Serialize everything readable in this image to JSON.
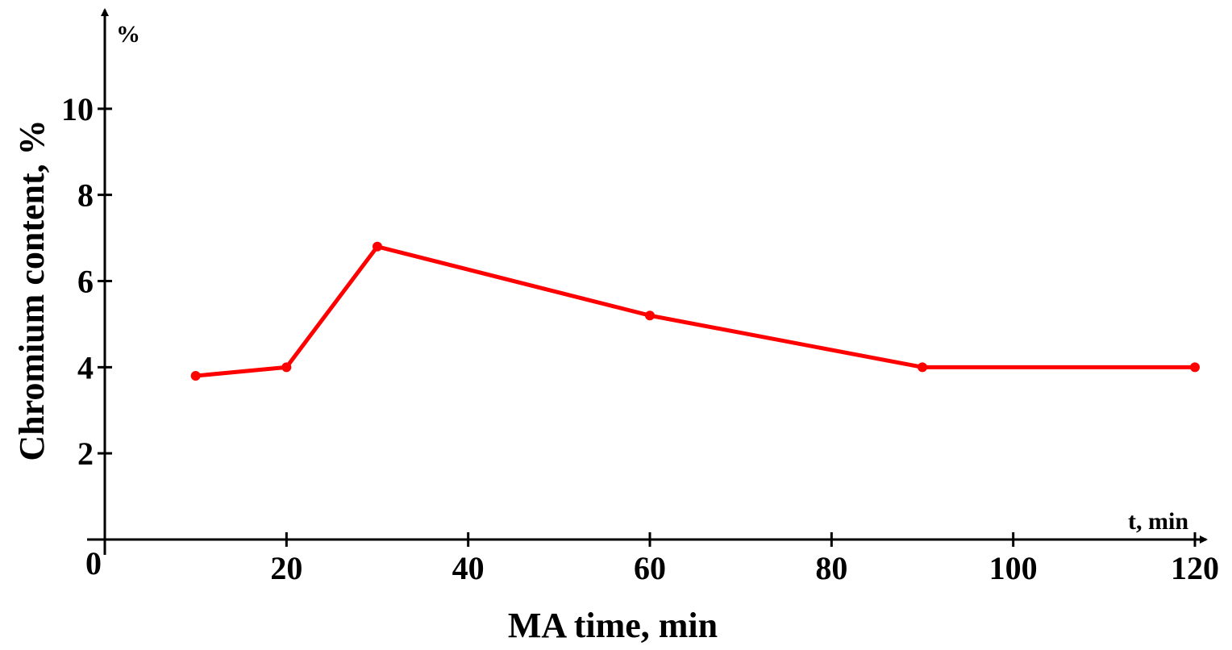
{
  "chart_data": {
    "type": "line",
    "xlabel": "MA time, min",
    "ylabel": "Chromium content, %",
    "x_axis_unit_label": "t, min",
    "y_axis_unit_label": "%",
    "origin_label": "0",
    "x_ticks": [
      20,
      40,
      60,
      80,
      100,
      120
    ],
    "y_ticks": [
      2,
      4,
      6,
      8,
      10
    ],
    "xlim": [
      0,
      120
    ],
    "ylim": [
      0,
      12
    ],
    "grid": false,
    "legend": "none",
    "series": [
      {
        "color": "#ff0000",
        "x": [
          10,
          20,
          30,
          60,
          90,
          120
        ],
        "y": [
          3.8,
          4.0,
          6.8,
          5.2,
          4.0,
          4.0
        ]
      }
    ]
  }
}
